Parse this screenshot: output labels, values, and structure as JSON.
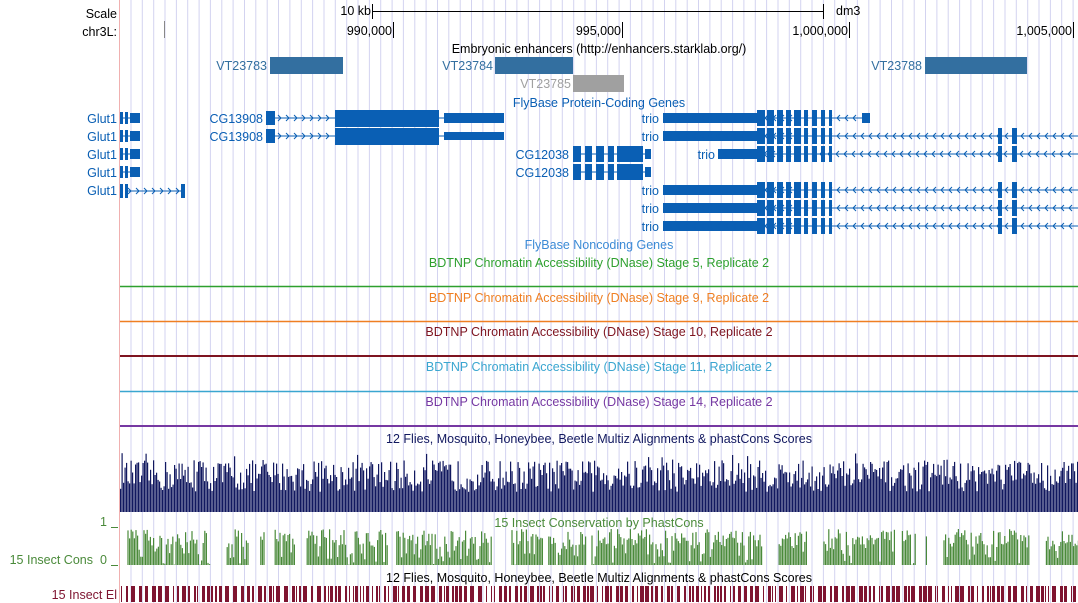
{
  "ruler": {
    "scale_label": "Scale",
    "chrom_label": "chr3L:",
    "scale_bar_label": "10 kb",
    "assembly": "dm3",
    "positions": [
      "990,000",
      "995,000",
      "1,000,000",
      "1,005,000"
    ]
  },
  "tracks": {
    "enhancers": {
      "title": "Embryonic enhancers (http://enhancers.starklab.org/)",
      "items": [
        {
          "name": "VT23783",
          "color": "#336fa0"
        },
        {
          "name": "VT23784",
          "color": "#336fa0"
        },
        {
          "name": "VT23785",
          "color": "#a0a0a0"
        },
        {
          "name": "VT23788",
          "color": "#336fa0"
        }
      ]
    },
    "genes": {
      "title": "FlyBase Protein-Coding Genes",
      "color": "#0a5fb4",
      "glut1_rows": [
        "Glut1",
        "Glut1",
        "Glut1",
        "Glut1",
        "Glut1"
      ],
      "cg13908_rows": [
        "CG13908",
        "CG13908"
      ],
      "cg12038_rows": [
        "CG12038",
        "CG12038"
      ],
      "trio_rows": [
        "trio",
        "trio",
        "trio",
        "trio",
        "trio",
        "trio"
      ]
    },
    "noncoding": {
      "title": "FlyBase Noncoding Genes",
      "color": "#3c8bd6"
    },
    "dnase": [
      {
        "title": "BDTNP Chromatin Accessibility (DNase) Stage 5, Replicate 2",
        "color": "#2ea02e"
      },
      {
        "title": "BDTNP Chromatin Accessibility (DNase) Stage 9, Replicate 2",
        "color": "#ef7f22"
      },
      {
        "title": "BDTNP Chromatin Accessibility (DNase) Stage 10, Replicate 2",
        "color": "#7e1420"
      },
      {
        "title": "BDTNP Chromatin Accessibility (DNase) Stage 11, Replicate 2",
        "color": "#3aa6d0"
      },
      {
        "title": "BDTNP Chromatin Accessibility (DNase) Stage 14, Replicate 2",
        "color": "#7638a2"
      }
    ],
    "multiz": {
      "title": "12 Flies, Mosquito, Honeybee, Beetle Multiz Alignments & phastCons Scores",
      "color": "#11185f"
    },
    "phastcons": {
      "title": "15 Insect Conservation by PhastCons",
      "side_label": "15 Insect Cons",
      "y_max": "1",
      "y_min": "0",
      "color": "#4a8a3a"
    },
    "elements": {
      "title": "12 Flies, Mosquito, Honeybee, Beetle Multiz Alignments & phastCons Scores",
      "side_label": "15 Insect El",
      "color": "#7e1430"
    }
  },
  "colors": {
    "gridline": "#d3d3f0",
    "side_rule": "#f0b0b0"
  }
}
